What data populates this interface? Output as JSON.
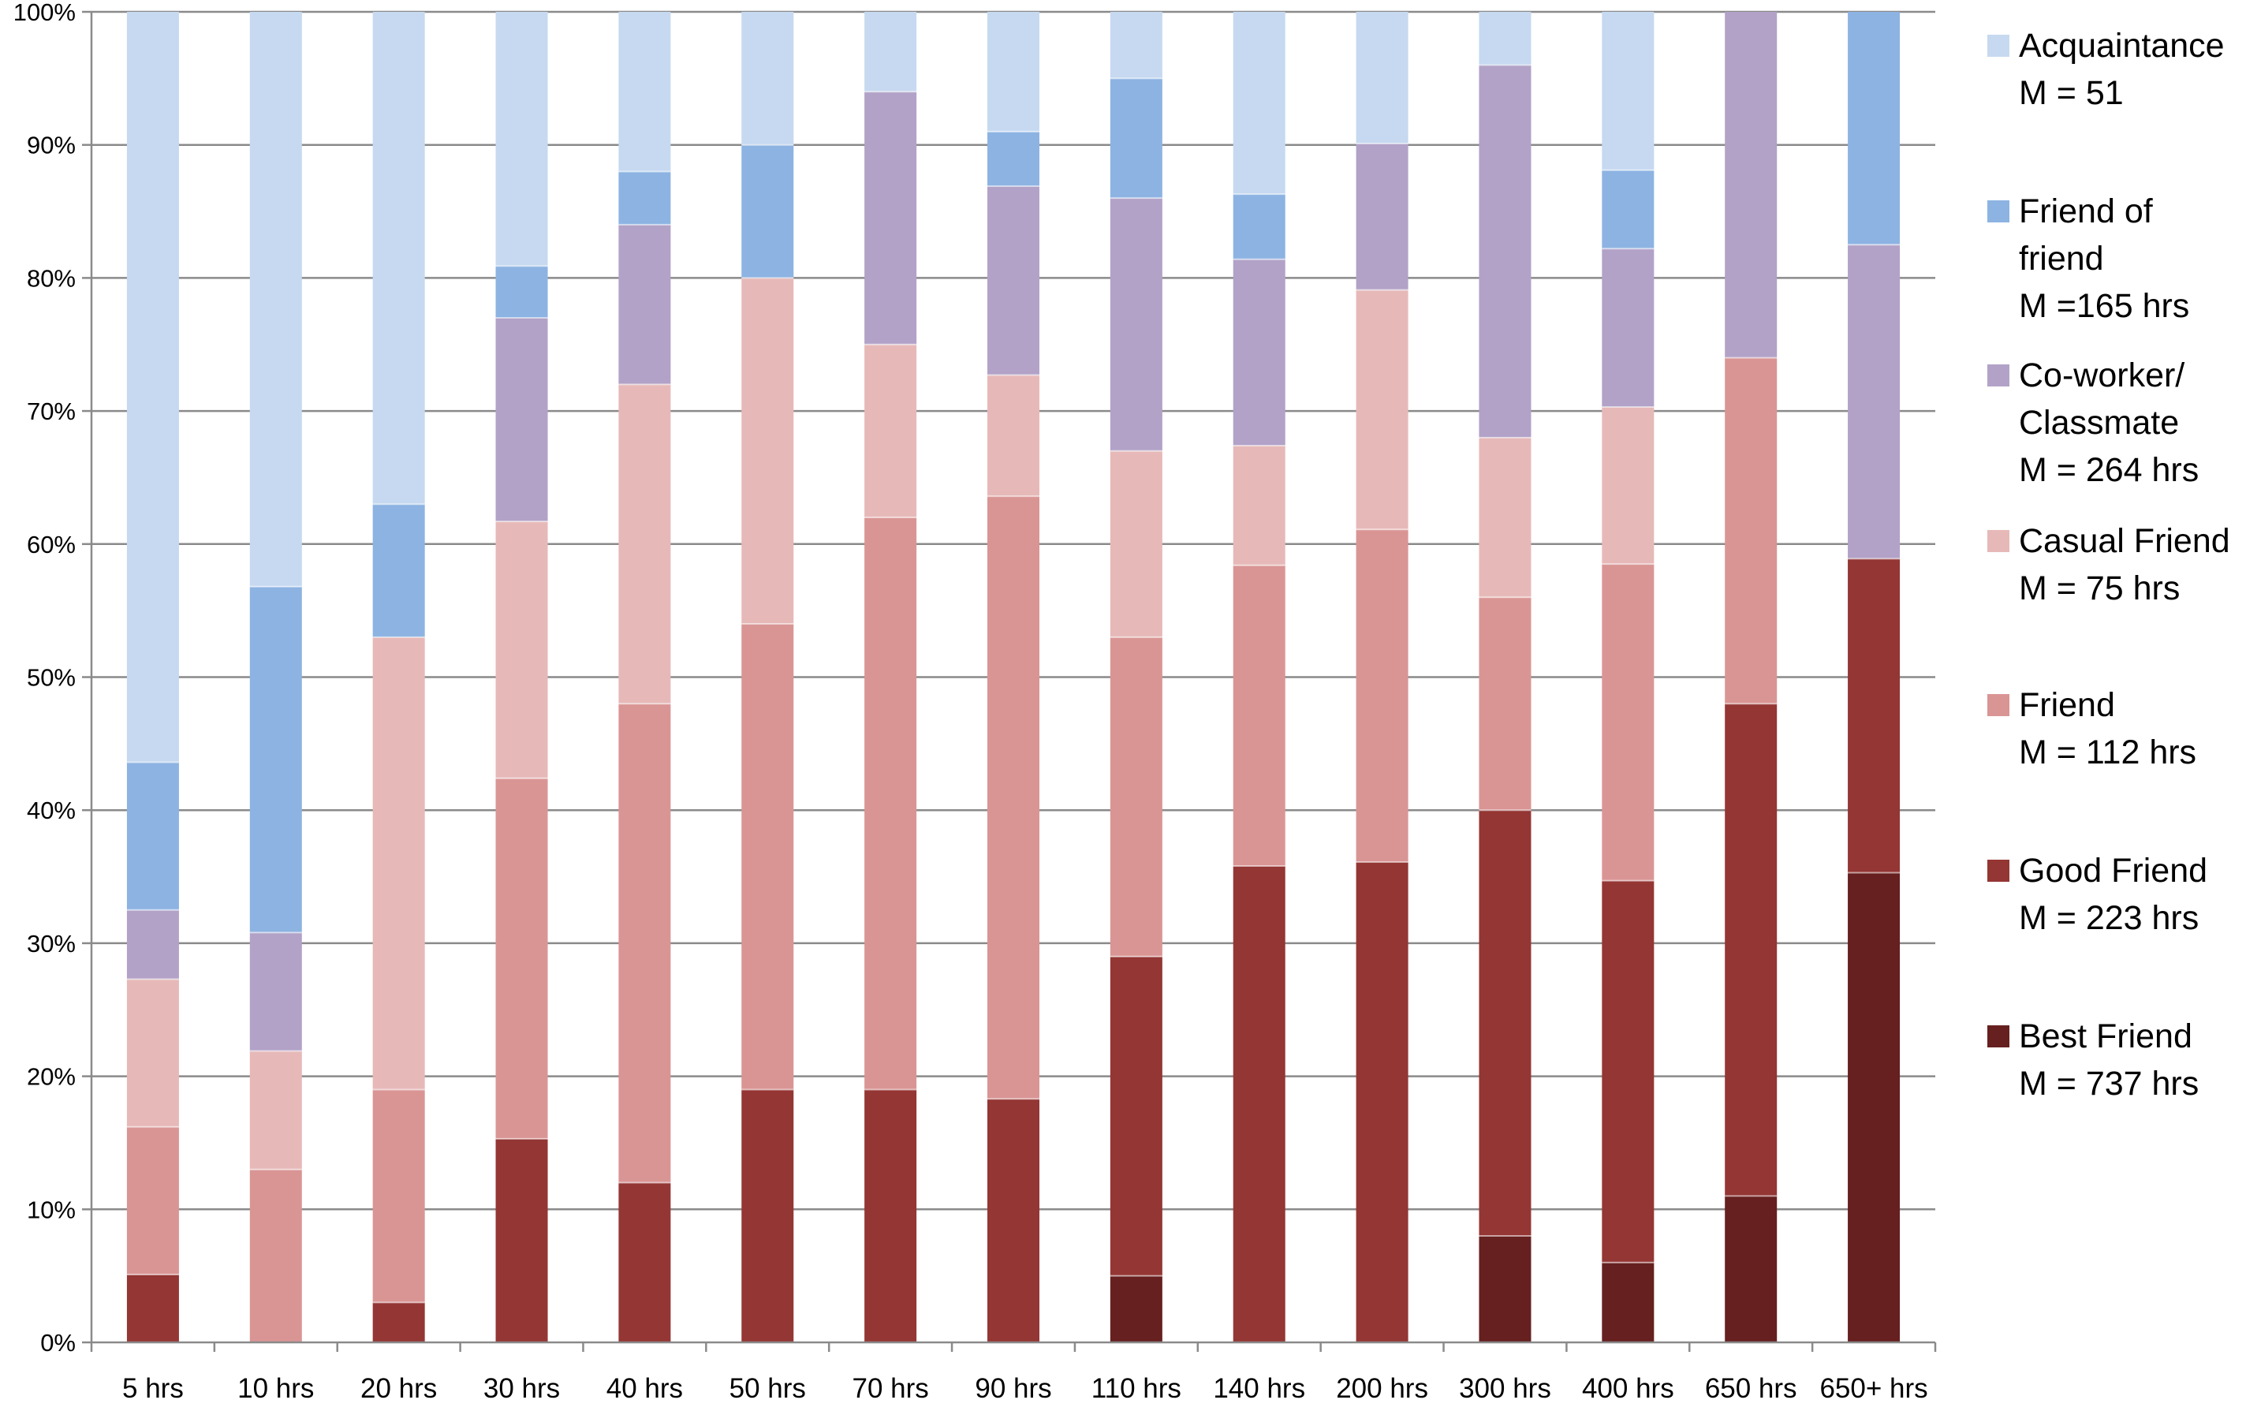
{
  "chart_data": {
    "type": "bar",
    "stacked": true,
    "categories": [
      "5 hrs",
      "10 hrs",
      "20 hrs",
      "30 hrs",
      "40 hrs",
      "50 hrs",
      "70 hrs",
      "90 hrs",
      "110 hrs",
      "140 hrs",
      "200 hrs",
      "300 hrs",
      "400 hrs",
      "650 hrs",
      "650+ hrs"
    ],
    "y_ticks": [
      "0%",
      "10%",
      "20%",
      "30%",
      "40%",
      "50%",
      "60%",
      "70%",
      "80%",
      "90%",
      "100%"
    ],
    "ylim": [
      0,
      100
    ],
    "grid": true,
    "legend_position": "right",
    "series": [
      {
        "name": "Best Friend",
        "sublabel": "M = 737 hrs",
        "color": "#66201f",
        "values": [
          0,
          0,
          0,
          0,
          0,
          0,
          0,
          0,
          5,
          0,
          0,
          8,
          6,
          11,
          35.3
        ]
      },
      {
        "name": "Good Friend",
        "sublabel": "M = 223 hrs",
        "color": "#943634",
        "values": [
          5.1,
          0,
          3,
          15.3,
          12,
          19,
          19,
          18.3,
          24,
          35.8,
          36.1,
          32,
          28.7,
          37,
          23.6
        ]
      },
      {
        "name": "Friend",
        "sublabel": "M = 112 hrs",
        "color": "#d99594",
        "values": [
          11.1,
          13,
          16,
          27.1,
          36,
          35,
          43,
          45.3,
          24,
          22.6,
          25,
          16,
          23.8,
          26,
          0
        ]
      },
      {
        "name": "Casual Friend",
        "sublabel": "M = 75 hrs",
        "color": "#e6b9b8",
        "values": [
          11.1,
          8.9,
          34,
          19.3,
          24,
          26,
          13,
          9.1,
          14,
          9,
          18,
          12,
          11.8,
          0,
          0
        ]
      },
      {
        "name": "Co-worker/ Classmate",
        "name_lines": [
          "Co-worker/",
          "Classmate"
        ],
        "sublabel": "M = 264 hrs",
        "color": "#b2a2c7",
        "values": [
          5.2,
          8.9,
          0,
          15.3,
          12,
          0,
          19,
          14.2,
          19,
          14,
          11,
          28,
          11.9,
          26,
          23.6
        ]
      },
      {
        "name": "Friend of friend",
        "name_lines": [
          "Friend of",
          "friend"
        ],
        "sublabel": "M =165 hrs",
        "color": "#8db3e2",
        "values": [
          11.1,
          26,
          10,
          3.9,
          4,
          10,
          0,
          4.1,
          9,
          4.9,
          0,
          0,
          5.9,
          0,
          17.5
        ]
      },
      {
        "name": "Acquaintance",
        "sublabel": "M = 51",
        "color": "#c6d9f0",
        "values": [
          56.4,
          43.2,
          37,
          19.1,
          12,
          10,
          6,
          9,
          5,
          13.7,
          9.9,
          4,
          11.9,
          0,
          0
        ]
      }
    ]
  }
}
